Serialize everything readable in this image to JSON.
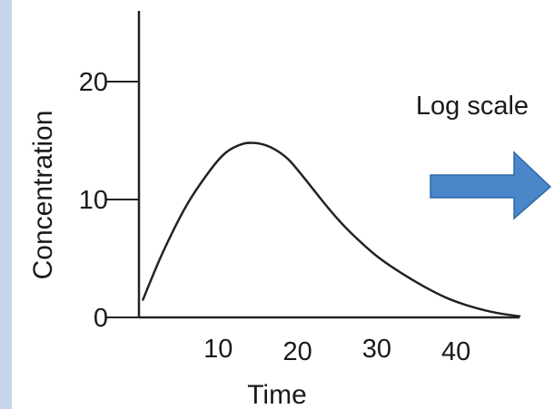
{
  "chart_data": {
    "type": "line",
    "title": "",
    "xlabel": "Time",
    "ylabel": "Concentration",
    "x_ticks": [
      10,
      20,
      30,
      40
    ],
    "y_ticks": [
      0,
      10,
      20
    ],
    "xlim": [
      0,
      48
    ],
    "ylim": [
      0,
      26
    ],
    "grid": false,
    "legend": "none",
    "series": [
      {
        "x": [
          0.5,
          3,
          6,
          9,
          11,
          13,
          14.5,
          16,
          17.5,
          19,
          21,
          23,
          25,
          27,
          30,
          33,
          36,
          39,
          42,
          45,
          48
        ],
        "y": [
          1.5,
          5.5,
          9.5,
          12.5,
          14,
          14.7,
          14.8,
          14.6,
          14.1,
          13.3,
          11.7,
          10,
          8.4,
          7,
          5.2,
          3.8,
          2.6,
          1.6,
          0.9,
          0.4,
          0.1
        ],
        "color": "#222222"
      }
    ],
    "annotation": {
      "text": "Log scale",
      "arrow_color": "#4a86c8",
      "arrow_direction": "right"
    }
  }
}
